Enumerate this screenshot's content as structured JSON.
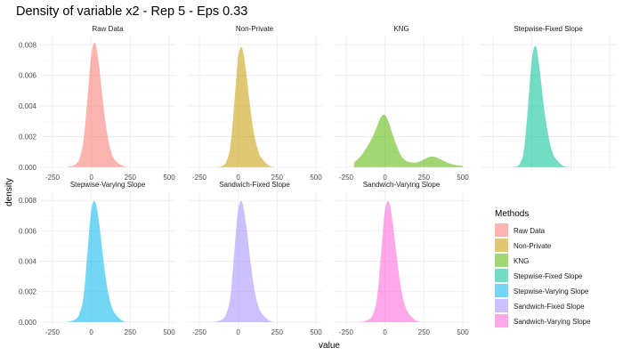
{
  "chart_data": {
    "type": "area",
    "title": "Density of variable x2 - Rep 5 - Eps 0.33",
    "xlabel": "value",
    "ylabel": "density",
    "xlim": [
      -330,
      540
    ],
    "ylim": [
      -0.0003,
      0.0086
    ],
    "x_ticks": [
      -250,
      0,
      250,
      500
    ],
    "x_tick_labels": [
      "-250",
      "0",
      "250",
      "500"
    ],
    "y_ticks": [
      0,
      0.002,
      0.004,
      0.006,
      0.008
    ],
    "y_tick_labels": [
      "0.000",
      "0.002",
      "0.004",
      "0.006",
      "0.008"
    ],
    "grid": true,
    "legend_position": "right",
    "legend_title": "Methods",
    "fill_opacity": 0.55,
    "x": [
      -200,
      -150,
      -100,
      -75,
      -50,
      -25,
      0,
      25,
      50,
      75,
      100,
      125,
      150,
      200,
      250,
      300,
      350,
      400,
      450,
      500
    ],
    "series": [
      {
        "name": "Raw Data",
        "color": "#F8766D",
        "values": [
          0,
          2e-05,
          0.0002,
          0.0006,
          0.0018,
          0.0045,
          0.0074,
          0.0081,
          0.0066,
          0.0042,
          0.0023,
          0.0011,
          0.0005,
          0.0001,
          0,
          0,
          0,
          0,
          0,
          0
        ]
      },
      {
        "name": "Non-Private",
        "color": "#C49A00",
        "values": [
          0,
          0,
          0.0001,
          0.0004,
          0.0014,
          0.0042,
          0.0072,
          0.0078,
          0.0063,
          0.0041,
          0.0023,
          0.0012,
          0.0006,
          0.0001,
          0,
          0,
          0,
          0,
          0,
          0
        ]
      },
      {
        "name": "KNG",
        "color": "#53B400",
        "values": [
          0.0003,
          0.0008,
          0.0016,
          0.0021,
          0.0027,
          0.0033,
          0.0034,
          0.0029,
          0.0021,
          0.0014,
          0.0008,
          0.0005,
          0.00035,
          0.0003,
          0.0005,
          0.0007,
          0.00055,
          0.0003,
          0.00015,
          8e-05
        ]
      },
      {
        "name": "Stepwise-Fixed Slope",
        "color": "#00C094",
        "values": [
          0,
          0,
          5e-05,
          0.0003,
          0.0012,
          0.004,
          0.0071,
          0.0079,
          0.0064,
          0.0041,
          0.0024,
          0.0012,
          0.0006,
          0.0001,
          0,
          0,
          0,
          0,
          0,
          0
        ]
      },
      {
        "name": "Stepwise-Varying Slope",
        "color": "#00B6EB",
        "values": [
          0,
          2e-05,
          0.0002,
          0.0006,
          0.0017,
          0.0046,
          0.0074,
          0.0079,
          0.0065,
          0.0043,
          0.0024,
          0.0012,
          0.0006,
          0.0001,
          0,
          0,
          0,
          0,
          0,
          0
        ]
      },
      {
        "name": "Sandwich-Fixed Slope",
        "color": "#A58AFF",
        "values": [
          0,
          2e-05,
          0.0002,
          0.0006,
          0.0017,
          0.0046,
          0.0074,
          0.0079,
          0.0065,
          0.0043,
          0.0024,
          0.0012,
          0.0006,
          0.0001,
          0,
          0,
          0,
          0,
          0,
          0
        ]
      },
      {
        "name": "Sandwich-Varying Slope",
        "color": "#FB61D7",
        "values": [
          0,
          2e-05,
          0.0002,
          0.0006,
          0.0017,
          0.0046,
          0.0074,
          0.0079,
          0.0065,
          0.0043,
          0.0024,
          0.0012,
          0.0006,
          0.0001,
          0,
          0,
          0,
          0,
          0,
          0
        ]
      }
    ]
  }
}
